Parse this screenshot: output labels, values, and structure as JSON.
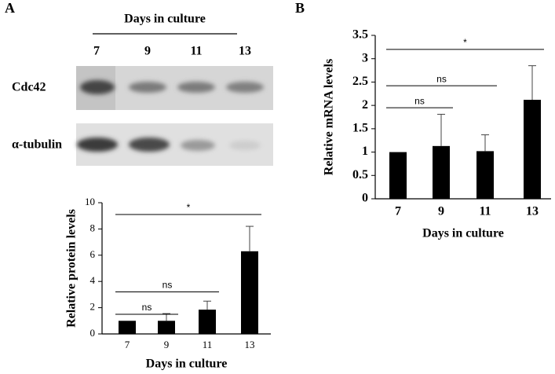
{
  "panel_labels": [
    "A",
    "B"
  ],
  "blot": {
    "title": "Days in culture",
    "lanes": [
      "7",
      "9",
      "11",
      "13"
    ],
    "rows": [
      "Cdc42",
      "α-tubulin"
    ]
  },
  "chart_data": [
    {
      "type": "bar",
      "categories": [
        "7",
        "9",
        "11",
        "13"
      ],
      "values": [
        1,
        1,
        1.85,
        6.3
      ],
      "errors": [
        0,
        0.55,
        0.65,
        1.9
      ],
      "color": "#000000",
      "ylim": [
        0,
        10
      ],
      "yticks": [
        0,
        2,
        4,
        6,
        8,
        10
      ],
      "ylabel": "Relative protein levels",
      "xlabel": "Days in culture",
      "annotations": [
        {
          "text": "ns",
          "from": 0,
          "to": 1,
          "y": 1.5
        },
        {
          "text": "ns",
          "from": 0,
          "to": 2,
          "y": 3.2
        },
        {
          "text": "*",
          "from": 0,
          "to": 3,
          "y": 9.1
        }
      ]
    },
    {
      "type": "bar",
      "categories": [
        "7",
        "9",
        "11",
        "13"
      ],
      "values": [
        1,
        1.13,
        1.02,
        2.12
      ],
      "errors": [
        0,
        0.68,
        0.35,
        0.73
      ],
      "color": "#000000",
      "ylim": [
        0,
        3.5
      ],
      "yticks": [
        0,
        0.5,
        1,
        1.5,
        2,
        2.5,
        3,
        3.5
      ],
      "ylabel": "Relative mRNA levels",
      "xlabel": "Days in culture",
      "annotations": [
        {
          "text": "ns",
          "from": 0,
          "to": 1,
          "y": 1.95
        },
        {
          "text": "ns",
          "from": 0,
          "to": 2,
          "y": 2.42
        },
        {
          "text": "*",
          "from": 0,
          "to": 3,
          "y": 3.2
        }
      ]
    }
  ]
}
